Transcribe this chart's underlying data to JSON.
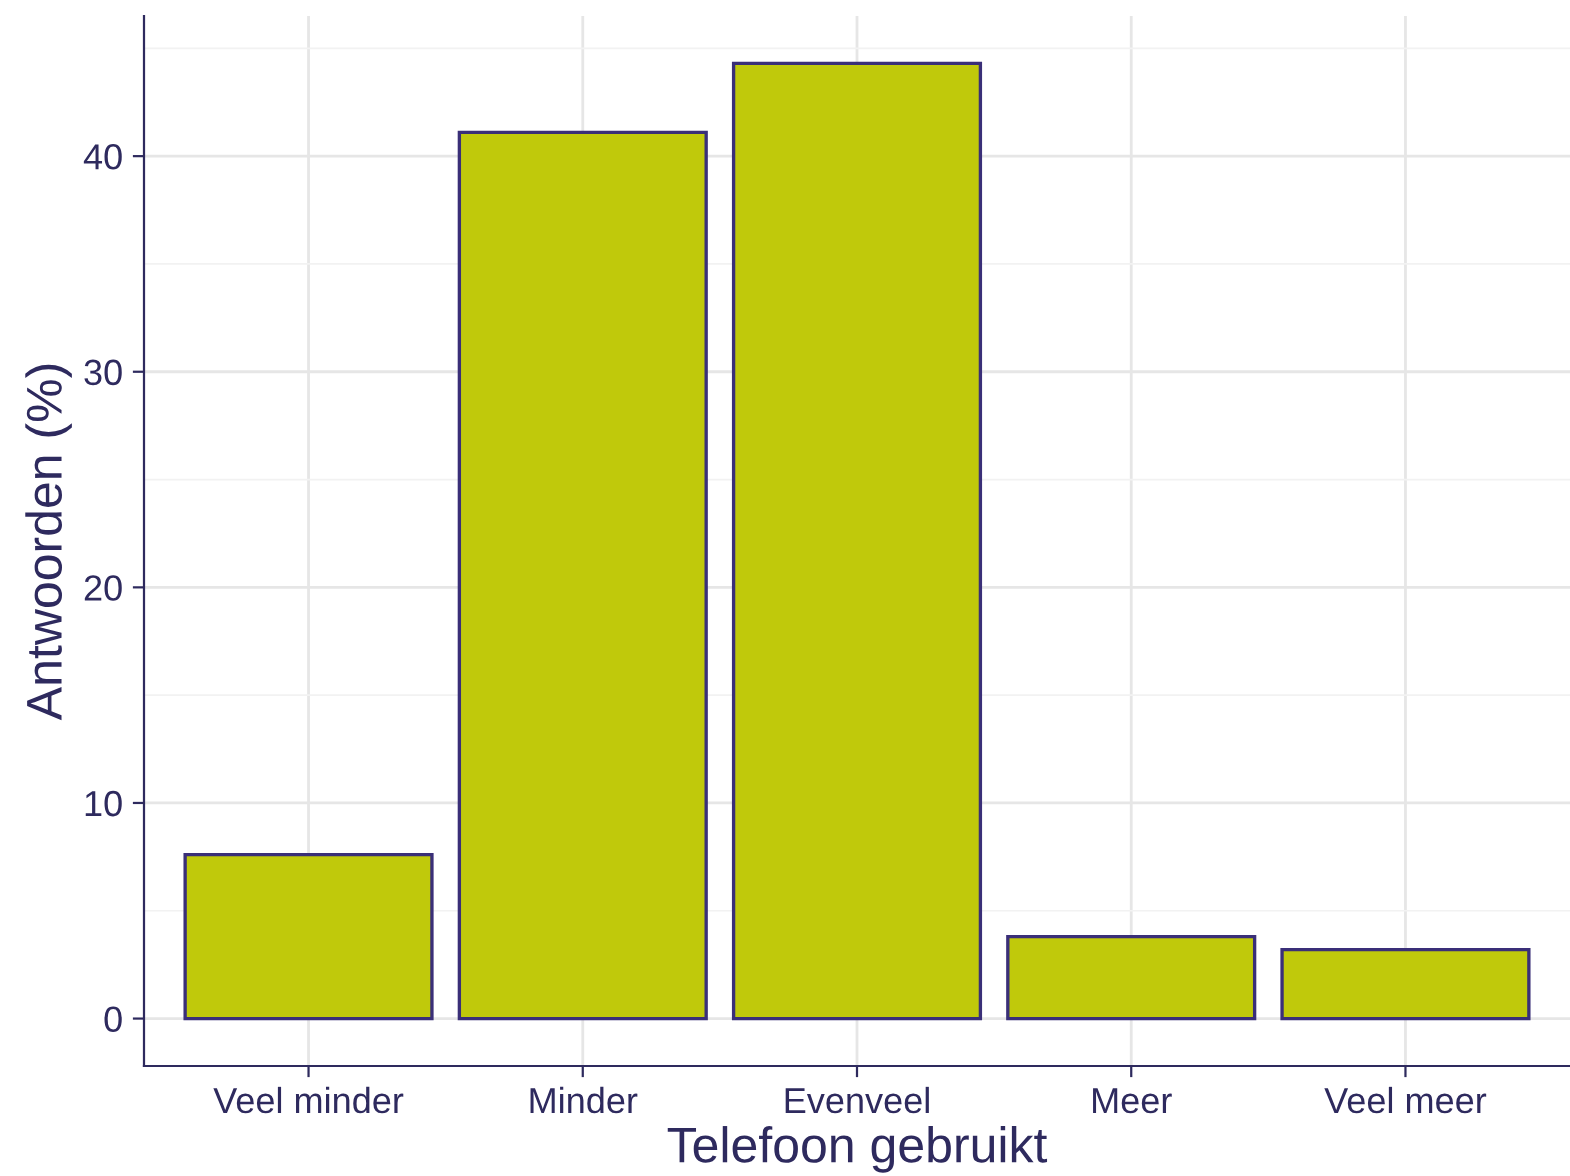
{
  "chart_data": {
    "type": "bar",
    "xlabel": "Telefoon gebruikt",
    "ylabel": "Antwoorden (%)",
    "categories": [
      "Veel minder",
      "Minder",
      "Evenveel",
      "Meer",
      "Veel meer"
    ],
    "values": [
      7.6,
      41.1,
      44.3,
      3.8,
      3.2
    ],
    "color": "#c0c90b",
    "ylim": [
      -2.2,
      46.5
    ],
    "yticks": [
      0,
      10,
      20,
      30,
      40
    ],
    "grid": true
  }
}
